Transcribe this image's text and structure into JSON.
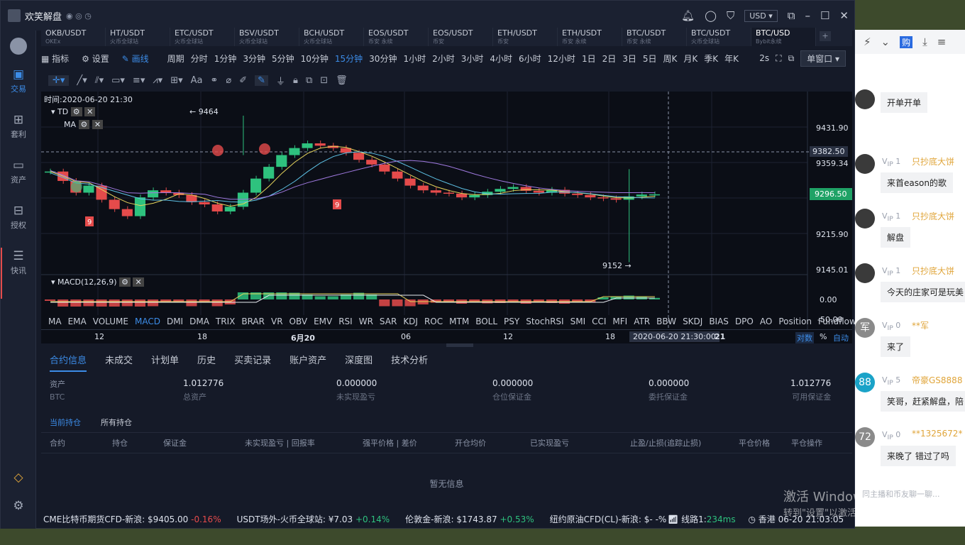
{
  "app": {
    "title": "欢笑解盘",
    "currency": "USD ▾"
  },
  "sidebar": [
    {
      "label": "交易",
      "icon": "trade-icon"
    },
    {
      "label": "套利",
      "icon": "arbitrage-icon"
    },
    {
      "label": "资产",
      "icon": "assets-icon"
    },
    {
      "label": "授权",
      "icon": "auth-icon"
    },
    {
      "label": "快讯",
      "icon": "news-icon"
    }
  ],
  "tabs": [
    {
      "name": "OKB/USDT",
      "sub": "OKEx"
    },
    {
      "name": "HT/USDT",
      "sub": "火币全球站"
    },
    {
      "name": "ETC/USDT",
      "sub": "火币全球站"
    },
    {
      "name": "BSV/USDT",
      "sub": "火币全球站"
    },
    {
      "name": "BCH/USDT",
      "sub": "火币全球站"
    },
    {
      "name": "EOS/USDT",
      "sub": "币安 永续"
    },
    {
      "name": "EOS/USDT",
      "sub": "币安"
    },
    {
      "name": "ETH/USDT",
      "sub": "币安"
    },
    {
      "name": "ETH/USDT",
      "sub": "币安 永续"
    },
    {
      "name": "BTC/USDT",
      "sub": "币安 永续"
    },
    {
      "name": "BTC/USDT",
      "sub": "火币全球站"
    },
    {
      "name": "BTC/USD",
      "sub": "Bybit永续"
    }
  ],
  "toolbar": {
    "indicator": "指标",
    "settings": "设置",
    "draw": "画线",
    "period": "周期",
    "intervals": [
      "分时",
      "1分钟",
      "3分钟",
      "5分钟",
      "10分钟",
      "15分钟",
      "30分钟",
      "1小时",
      "2小时",
      "3小时",
      "4小时",
      "6小时",
      "12小时",
      "1日",
      "2日",
      "3日",
      "5日",
      "周K",
      "月K",
      "季K",
      "年K"
    ],
    "active_interval": "15分钟",
    "refresh": "2s",
    "window_mode": "单窗口 ▾"
  },
  "chart": {
    "time_label": "时间:2020-06-20 21:30",
    "td_label": "TD",
    "ma_label": "MA",
    "macd_label": "MACD(12,26,9)",
    "high_label": "← 9464",
    "low_label": "9152 →",
    "price_ticks": [
      "9431.90",
      "9359.34",
      "9215.90",
      "9145.01"
    ],
    "macd_ticks": [
      "0.00",
      "-50.00"
    ],
    "crosshair_price": "9382.50",
    "last_price": "9296.50",
    "indicators": [
      "MA",
      "EMA",
      "VOLUME",
      "MACD",
      "DMI",
      "DMA",
      "TRIX",
      "BRAR",
      "VR",
      "OBV",
      "EMV",
      "RSI",
      "WR",
      "SAR",
      "KDJ",
      "ROC",
      "MTM",
      "BOLL",
      "PSY",
      "StochRSI",
      "SMI",
      "CCI",
      "MFI",
      "ATR",
      "BBW",
      "SKDJ",
      "BIAS",
      "DPO",
      "AO",
      "Position",
      "Fundflow"
    ],
    "active_indicator": "MACD",
    "date_ticks": [
      "12",
      "18",
      "6月20",
      "06",
      "12",
      "18"
    ],
    "cursor_date": "2020-06-20 21:30:00",
    "date_tail": "21",
    "scale_log": "对数",
    "scale_pct": "%",
    "scale_auto": "自动"
  },
  "chart_data": {
    "type": "candlestick",
    "title": "BTC/USD Bybit永续 15分钟",
    "ylim": [
      9130,
      9470
    ],
    "high": 9464,
    "low": 9152,
    "last": 9296.5,
    "closes": [
      9345,
      9325,
      9300,
      9315,
      9285,
      9265,
      9250,
      9290,
      9305,
      9300,
      9295,
      9280,
      9275,
      9260,
      9270,
      9300,
      9330,
      9355,
      9380,
      9395,
      9405,
      9400,
      9395,
      9385,
      9370,
      9360,
      9345,
      9330,
      9315,
      9305,
      9300,
      9298,
      9290,
      9295,
      9302,
      9308,
      9312,
      9304,
      9300,
      9306,
      9298,
      9295,
      9290,
      9288,
      9285,
      9292,
      9296,
      9296.5
    ]
  },
  "panel": {
    "tabs": [
      "合约信息",
      "未成交",
      "计划单",
      "历史",
      "买卖记录",
      "账户资产",
      "深度图",
      "技术分析"
    ],
    "asset_label": "资产",
    "asset_ccy": "BTC",
    "stats": [
      {
        "value": "1.012776",
        "label": "总资产"
      },
      {
        "value": "0.000000",
        "label": "未实现盈亏"
      },
      {
        "value": "0.000000",
        "label": "仓位保证金"
      },
      {
        "value": "0.000000",
        "label": "委托保证金"
      },
      {
        "value": "1.012776",
        "label": "可用保证金"
      }
    ],
    "subtabs": [
      "当前持仓",
      "所有持仓"
    ],
    "columns": [
      "合约",
      "持仓",
      "保证金",
      "未实现盈亏 | 回报率",
      "强平价格 | 差价",
      "开仓均价",
      "已实现盈亏",
      "止盈/止损(追踪止损)",
      "平仓价格",
      "平仓操作"
    ],
    "empty": "暂无信息"
  },
  "ticker": [
    {
      "name": "CME比特币期货CFD-新浪:",
      "price": "$9405.00",
      "chg": "-0.16%",
      "dir": "dn"
    },
    {
      "name": "USDT场外-火币全球站:",
      "price": "¥7.03",
      "chg": "+0.14%",
      "dir": "up"
    },
    {
      "name": "伦敦金-新浪:",
      "price": "$1743.87",
      "chg": "+0.53%",
      "dir": "up"
    },
    {
      "name": "纽约原油CFD(CL)-新浪:",
      "price": "$- -%",
      "chg": "",
      "dir": ""
    }
  ],
  "status": {
    "line": "线路1:",
    "latency": "234ms",
    "clock": "香港 06-20 21:03:05"
  },
  "chat": {
    "messages": [
      {
        "vip": "1",
        "user": "",
        "text": "开单开单"
      },
      {
        "vip": "1",
        "user": "只抄底大饼",
        "text": "来首eason的歌"
      },
      {
        "vip": "1",
        "user": "只抄底大饼",
        "text": "解盘"
      },
      {
        "vip": "1",
        "user": "只抄底大饼",
        "text": "今天的庄家可是玩美"
      },
      {
        "vip": "0",
        "user": "**军",
        "avatar": "军",
        "text": "来了"
      },
      {
        "vip": "5",
        "user": "帝豪GS8888",
        "avatar": "88",
        "text": "笑哥，赶紧解盘，陪"
      },
      {
        "vip": "0",
        "user": "**1325672*",
        "avatar": "72",
        "text": "来晚了 错过了吗"
      }
    ],
    "footer": "同主播和币友聊一聊..."
  },
  "watermark": {
    "line1": "激活 Windows",
    "line2": "转到\"设置\"以激活 Windows。"
  },
  "colors": {
    "bg": "#151a28",
    "accent": "#3c8ce7",
    "up": "#2ec27e",
    "down": "#e54b4b",
    "price_box": "#1fa266"
  }
}
